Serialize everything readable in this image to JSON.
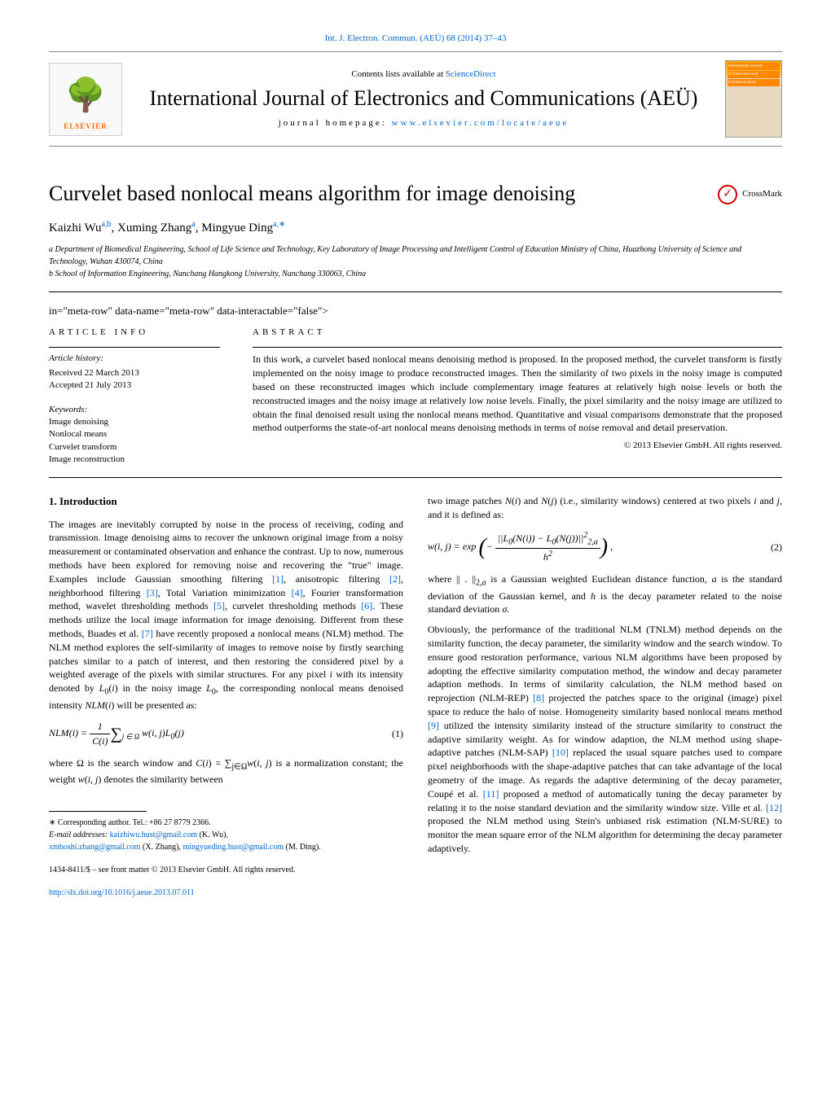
{
  "top_link": "Int. J. Electron. Commun. (AEÜ) 68 (2014) 37–43",
  "header": {
    "contents_prefix": "Contents lists available at ",
    "contents_link": "ScienceDirect",
    "journal_title": "International Journal of Electronics and Communications (AEÜ)",
    "homepage_prefix": "journal homepage: ",
    "homepage_link": "www.elsevier.com/locate/aeue",
    "publisher": "ELSEVIER",
    "cover_label_top": "International Journal",
    "cover_label_mid": "of Electronics and",
    "cover_label_bot": "Communications"
  },
  "paper": {
    "title": "Curvelet based nonlocal means algorithm for image denoising",
    "crossmark": "CrossMark",
    "authors_html": "Kaizhi Wu",
    "author_sup_1": "a,b",
    "author_2": ", Xuming Zhang",
    "author_sup_2": "a",
    "author_3": ", Mingyue Ding",
    "author_sup_3": "a,∗",
    "affil_a": "a Department of Biomedical Engineering, School of Life Science and Technology, Key Laboratory of Image Processing and Intelligent Control of Education Ministry of China, Huazhong University of Science and Technology, Wuhan 430074, China",
    "affil_b": "b School of Information Engineering, Nanchang Hangkong University, Nanchang 330063, China"
  },
  "meta": {
    "info_label": "ARTICLE INFO",
    "abstract_label": "ABSTRACT",
    "history_label": "Article history:",
    "received": "Received 22 March 2013",
    "accepted": "Accepted 21 July 2013",
    "keywords_label": "Keywords:",
    "keywords": [
      "Image denoising",
      "Nonlocal means",
      "Curvelet transform",
      "Image reconstruction"
    ],
    "abstract": "In this work, a curvelet based nonlocal means denoising method is proposed. In the proposed method, the curvelet transform is firstly implemented on the noisy image to produce reconstructed images. Then the similarity of two pixels in the noisy image is computed based on these reconstructed images which include complementary image features at relatively high noise levels or both the reconstructed images and the noisy image at relatively low noise levels. Finally, the pixel similarity and the noisy image are utilized to obtain the final denoised result using the nonlocal means method. Quantitative and visual comparisons demonstrate that the proposed method outperforms the state-of-art nonlocal means denoising methods in terms of noise removal and detail preservation.",
    "copyright": "© 2013 Elsevier GmbH. All rights reserved."
  },
  "intro": {
    "heading": "1.  Introduction",
    "para1": "The images are inevitably corrupted by noise in the process of receiving, coding and transmission. Image denoising aims to recover the unknown original image from a noisy measurement or contaminated observation and enhance the contrast. Up to now, numerous methods have been explored for removing noise and recovering the \"true\" image. Examples include Gaussian smoothing filtering [1], anisotropic filtering [2], neighborhood filtering [3], Total Variation minimization [4], Fourier transformation method, wavelet thresholding methods [5], curvelet thresholding methods [6]. These methods utilize the local image information for image denoising. Different from these methods, Buades et al. [7] have recently proposed a nonlocal means (NLM) method. The NLM method explores the self-similarity of images to remove noise by firstly searching patches similar to a patch of interest, and then restoring the considered pixel by a weighted average of the pixels with similar structures. For any pixel i with its intensity denoted by L₀(i) in the noisy image L₀, the corresponding nonlocal means denoised intensity NLM(i) will be presented as:",
    "eq1_num": "(1)",
    "para2": "where Ω is the search window and C(i) = ∑j∈Ω w(i, j) is a normalization constant; the weight w(i, j) denotes the similarity between",
    "col2_para1": "two image patches N(i) and N(j) (i.e., similarity windows) centered at two pixels i and j, and it is defined as:",
    "eq2_num": "(2)",
    "col2_para2": "where || . ||2,a is a Gaussian weighted Euclidean distance function, a is the standard deviation of the Gaussian kernel, and h is the decay parameter related to the noise standard deviation σ.",
    "col2_para3": "Obviously, the performance of the traditional NLM (TNLM) method depends on the similarity function, the decay parameter, the similarity window and the search window. To ensure good restoration performance, various NLM algorithms have been proposed by adopting the effective similarity computation method, the window and decay parameter adaption methods. In terms of similarity calculation, the NLM method based on reprojection (NLM-REP) [8] projected the patches space to the original (image) pixel space to reduce the halo of noise. Homogeneity similarity based nonlocal means method [9] utilized the intensity similarity instead of the structure similarity to construct the adaptive similarity weight. As for window adaption, the NLM method using shape-adaptive patches (NLM-SAP) [10] replaced the usual square patches used to compare pixel neighborhoods with the shape-adaptive patches that can take advantage of the local geometry of the image. As regards the adaptive determining of the decay parameter, Coupé et al. [11] proposed a method of automatically tuning the decay parameter by relating it to the noise standard deviation and the similarity window size. Ville et al. [12] proposed the NLM method using Stein's unbiased risk estimation (NLM-SURE) to monitor the mean square error of the NLM algorithm for determining the decay parameter adaptively."
  },
  "footnotes": {
    "corresponding": "∗ Corresponding author. Tel.: +86 27 8779 2366.",
    "email_label": "E-mail addresses: ",
    "email1": "kaizhiwu.hust@gmail.com",
    "email1_who": " (K. Wu),",
    "email2": "xmboshi.zhang@gmail.com",
    "email2_who": " (X. Zhang), ",
    "email3": "mingyueding.hust@gmail.com",
    "email3_who": " (M. Ding).",
    "issn": "1434-8411/$ – see front matter © 2013 Elsevier GmbH. All rights reserved.",
    "doi": "http://dx.doi.org/10.1016/j.aeue.2013.07.011"
  },
  "colors": {
    "link": "#0066cc",
    "elsevier_orange": "#ff6600",
    "text": "#000000",
    "rule": "#000000"
  }
}
